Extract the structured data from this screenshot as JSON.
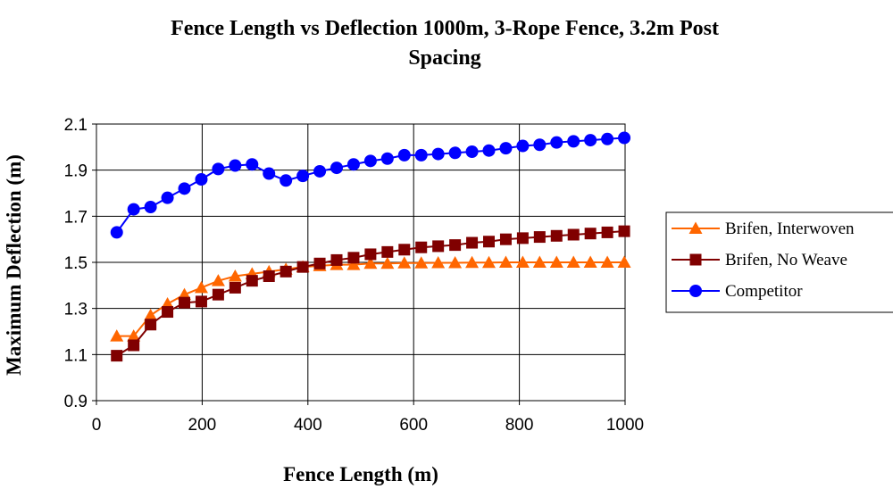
{
  "chart_data": {
    "type": "line",
    "title_line1": "Fence Length vs Deflection 1000m, 3-Rope Fence, 3.2m Post",
    "title_line2": "Spacing",
    "xlabel": "Fence Length (m)",
    "ylabel": "Maximum Deflection (m)",
    "xlim": [
      0,
      1000
    ],
    "ylim": [
      0.9,
      2.1
    ],
    "xticks": [
      0,
      200,
      400,
      600,
      800,
      1000
    ],
    "yticks": [
      0.9,
      1.1,
      1.3,
      1.5,
      1.7,
      1.9,
      2.1
    ],
    "ytick_labels": [
      "0.9",
      "1.1",
      "1.3",
      "1.5",
      "1.7",
      "1.9",
      "2.1"
    ],
    "grid": true,
    "legend_position": "right",
    "x": [
      38.4,
      70.4,
      102.4,
      134.4,
      166.4,
      198.4,
      230.4,
      262.4,
      294.4,
      326.4,
      358.4,
      390.4,
      422.4,
      454.4,
      486.4,
      518.4,
      550.4,
      582.4,
      614.4,
      646.4,
      678.4,
      710.4,
      742.4,
      774.4,
      806.4,
      838.4,
      870.4,
      902.4,
      934.4,
      966.4,
      998.4
    ],
    "series": [
      {
        "name": "Brifen, Interwoven",
        "color": "#ff6600",
        "marker": "triangle",
        "values": [
          1.18,
          1.18,
          1.27,
          1.32,
          1.36,
          1.39,
          1.42,
          1.44,
          1.45,
          1.46,
          1.47,
          1.48,
          1.485,
          1.49,
          1.49,
          1.495,
          1.495,
          1.497,
          1.497,
          1.498,
          1.498,
          1.499,
          1.499,
          1.5,
          1.5,
          1.5,
          1.5,
          1.5,
          1.5,
          1.5,
          1.5
        ]
      },
      {
        "name": "Brifen, No Weave",
        "color": "#800000",
        "marker": "square",
        "values": [
          1.095,
          1.14,
          1.23,
          1.285,
          1.325,
          1.33,
          1.36,
          1.39,
          1.42,
          1.44,
          1.46,
          1.48,
          1.495,
          1.51,
          1.52,
          1.535,
          1.545,
          1.555,
          1.565,
          1.57,
          1.575,
          1.585,
          1.59,
          1.6,
          1.605,
          1.61,
          1.615,
          1.62,
          1.625,
          1.63,
          1.635
        ]
      },
      {
        "name": "Competitor",
        "color": "#0000ff",
        "marker": "circle",
        "values": [
          1.63,
          1.73,
          1.74,
          1.78,
          1.82,
          1.86,
          1.905,
          1.92,
          1.925,
          1.885,
          1.855,
          1.875,
          1.895,
          1.91,
          1.925,
          1.94,
          1.95,
          1.965,
          1.965,
          1.97,
          1.975,
          1.98,
          1.985,
          1.995,
          2.005,
          2.01,
          2.02,
          2.025,
          2.03,
          2.035,
          2.04
        ]
      }
    ]
  }
}
